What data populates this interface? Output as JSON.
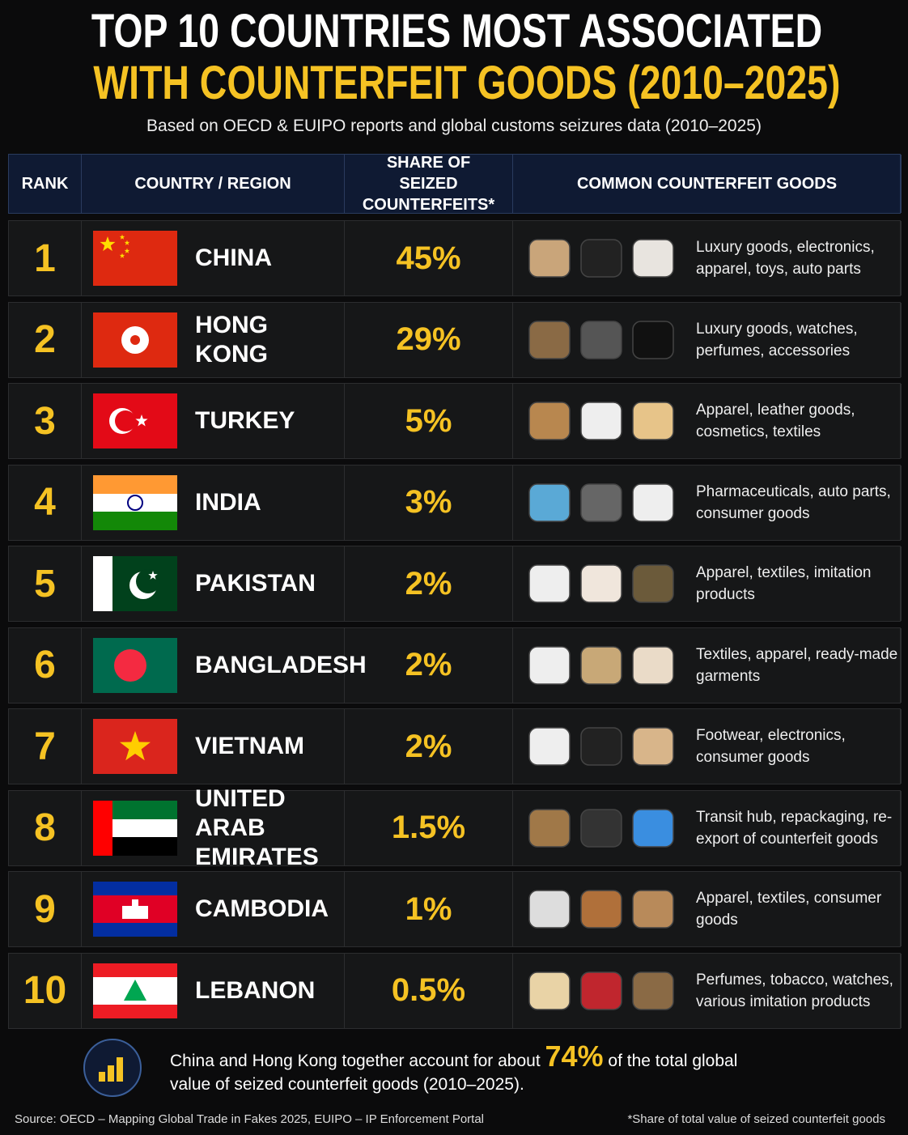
{
  "header": {
    "title_line1": "TOP 10 COUNTRIES MOST ASSOCIATED",
    "title_line2": "WITH COUNTERFEIT GOODS (2010–2025)",
    "subtitle": "Based on OECD & EUIPO reports and global customs seizures data (2010–2025)"
  },
  "table": {
    "columns": [
      "RANK",
      "COUNTRY / REGION",
      "SHARE OF SEIZED COUNTERFEITS*",
      "COMMON COUNTERFEIT GOODS"
    ],
    "rows": [
      [
        "1",
        "CHINA",
        "45%",
        "Luxury goods, electronics, apparel, toys, auto parts"
      ],
      [
        "2",
        "HONG KONG",
        "29%",
        "Luxury goods, watches, perfumes, accessories"
      ],
      [
        "3",
        "TURKEY",
        "5%",
        "Apparel, leather goods, cosmetics, textiles"
      ],
      [
        "4",
        "INDIA",
        "3%",
        "Pharmaceuticals, auto parts, consumer goods"
      ],
      [
        "5",
        "PAKISTAN",
        "2%",
        "Apparel, textiles, imitation products"
      ],
      [
        "6",
        "BANGLADESH",
        "2%",
        "Textiles, apparel, ready-made garments"
      ],
      [
        "7",
        "VIETNAM",
        "2%",
        "Footwear, electronics, consumer goods"
      ],
      [
        "8",
        "UNITED ARAB EMIRATES",
        "1.5%",
        "Transit hub, repackaging, re-export of counterfeit goods"
      ],
      [
        "9",
        "CAMBODIA",
        "1%",
        "Apparel, textiles, consumer goods"
      ],
      [
        "10",
        "LEBANON",
        "0.5%",
        "Perfumes, tobacco, watches, various imitation products"
      ]
    ]
  },
  "callout": {
    "text_before": "China and Hong Kong together account for about",
    "highlight": "74%",
    "text_after": "of the total global value of seized counterfeit goods (2010–2025)."
  },
  "footer": {
    "source": "Source: OECD – Mapping Global Trade in Fakes 2025, EUIPO – IP Enforcement Portal",
    "footnote": "*Share of total value of seized counterfeit goods"
  }
}
